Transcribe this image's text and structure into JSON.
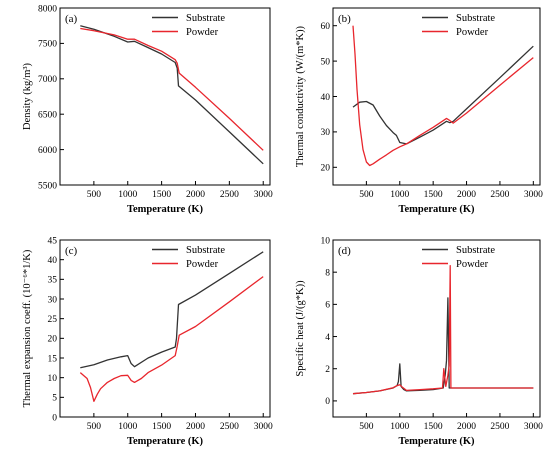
{
  "chart_data": [
    {
      "type": "line",
      "panel": "(a)",
      "xlabel": "Temperature (K)",
      "ylabel": "Density (kg/m³)",
      "xlim": [
        0,
        3100
      ],
      "ylim": [
        5500,
        8000
      ],
      "xticks": [
        "500",
        "1000",
        "1500",
        "2000",
        "2500",
        "3000"
      ],
      "yticks": [
        "5500",
        "6000",
        "6500",
        "7000",
        "7500",
        "8000"
      ],
      "legend_position": "top-right",
      "series": [
        {
          "name": "Substrate",
          "color": "#333333",
          "x": [
            300,
            500,
            800,
            1000,
            1100,
            1300,
            1500,
            1700,
            1730,
            1750,
            2000,
            2500,
            3000
          ],
          "y": [
            7750,
            7700,
            7600,
            7520,
            7530,
            7440,
            7350,
            7230,
            7150,
            6900,
            6700,
            6250,
            5800
          ]
        },
        {
          "name": "Powder",
          "color": "#e8262d",
          "x": [
            300,
            500,
            800,
            1000,
            1100,
            1300,
            1500,
            1700,
            1730,
            1760,
            2000,
            2500,
            3000
          ],
          "y": [
            7710,
            7680,
            7620,
            7560,
            7560,
            7470,
            7390,
            7270,
            7220,
            7080,
            6880,
            6440,
            5990
          ]
        }
      ]
    },
    {
      "type": "line",
      "panel": "(b)",
      "xlabel": "Temperature (K)",
      "ylabel": "Thermal conductivity (W/(m*K))",
      "xlim": [
        0,
        3100
      ],
      "ylim": [
        15,
        65
      ],
      "xticks": [
        "500",
        "1000",
        "1500",
        "2000",
        "2500",
        "3000"
      ],
      "yticks": [
        "20",
        "30",
        "40",
        "50",
        "60"
      ],
      "legend_position": "top-right",
      "series": [
        {
          "name": "Substrate",
          "color": "#333333",
          "x": [
            300,
            400,
            500,
            600,
            700,
            800,
            900,
            950,
            1000,
            1100,
            1300,
            1500,
            1700,
            1750,
            1800,
            2000,
            2500,
            3000
          ],
          "y": [
            37,
            38.4,
            38.6,
            37.6,
            34.5,
            31.8,
            29.8,
            29.0,
            27.0,
            26.6,
            28.5,
            30.5,
            33.0,
            32.6,
            33.0,
            36.5,
            45.3,
            54.2
          ]
        },
        {
          "name": "Powder",
          "color": "#e8262d",
          "x": [
            300,
            330,
            360,
            400,
            450,
            500,
            550,
            600,
            700,
            800,
            900,
            1000,
            1100,
            1300,
            1500,
            1700,
            1750,
            1800,
            2000,
            2500,
            3000
          ],
          "y": [
            60,
            52,
            42,
            32,
            25,
            21.5,
            20.5,
            21.0,
            22.3,
            23.5,
            24.8,
            25.8,
            26.6,
            29.0,
            31.3,
            33.8,
            33.2,
            32.5,
            35.3,
            43.2,
            51.0
          ]
        }
      ]
    },
    {
      "type": "line",
      "panel": "(c)",
      "xlabel": "Temperature (K)",
      "ylabel": "Thermal expansion coeff. (10⁻⁶*1/K)",
      "xlim": [
        0,
        3100
      ],
      "ylim": [
        0,
        45
      ],
      "xticks": [
        "500",
        "1000",
        "1500",
        "2000",
        "2500",
        "3000"
      ],
      "yticks": [
        "0",
        "5",
        "10",
        "15",
        "20",
        "25",
        "30",
        "35",
        "40",
        "45"
      ],
      "legend_position": "top-right",
      "series": [
        {
          "name": "Substrate",
          "color": "#333333",
          "x": [
            300,
            500,
            700,
            900,
            1000,
            1050,
            1100,
            1300,
            1500,
            1700,
            1720,
            1750,
            2000,
            2500,
            3000
          ],
          "y": [
            12.5,
            13.3,
            14.5,
            15.3,
            15.6,
            13.6,
            12.8,
            15.0,
            16.5,
            17.8,
            20.0,
            28.6,
            31.0,
            36.5,
            42.0
          ]
        },
        {
          "name": "Powder",
          "color": "#e8262d",
          "x": [
            300,
            400,
            450,
            500,
            550,
            600,
            700,
            800,
            900,
            1000,
            1050,
            1100,
            1200,
            1300,
            1500,
            1700,
            1730,
            1760,
            2000,
            2500,
            3000
          ],
          "y": [
            11.3,
            9.8,
            7.5,
            4.0,
            5.8,
            7.2,
            8.8,
            9.8,
            10.5,
            10.6,
            9.3,
            8.8,
            9.8,
            11.3,
            13.2,
            15.6,
            18.0,
            20.8,
            23.0,
            29.3,
            35.7
          ]
        }
      ]
    },
    {
      "type": "line",
      "panel": "(d)",
      "xlabel": "Temperature (K)",
      "ylabel": "Specific heat (J/(g*K))",
      "xlim": [
        0,
        3100
      ],
      "ylim": [
        -1,
        10
      ],
      "xticks": [
        "500",
        "1000",
        "1500",
        "2000",
        "2500",
        "3000"
      ],
      "yticks": [
        "0",
        "2",
        "4",
        "6",
        "8",
        "10"
      ],
      "legend_position": "top-right",
      "series": [
        {
          "name": "Substrate",
          "color": "#333333",
          "x": [
            300,
            500,
            700,
            900,
            960,
            980,
            1000,
            1020,
            1060,
            1100,
            1300,
            1500,
            1650,
            1680,
            1700,
            1720,
            1740,
            1760,
            1780,
            2000,
            2500,
            3000
          ],
          "y": [
            0.45,
            0.52,
            0.62,
            0.8,
            0.95,
            1.2,
            2.3,
            0.9,
            0.7,
            0.62,
            0.65,
            0.7,
            0.8,
            1.6,
            2.5,
            6.4,
            0.8,
            0.8,
            0.8,
            0.8,
            0.8,
            0.8
          ]
        },
        {
          "name": "Powder",
          "color": "#e8262d",
          "x": [
            300,
            500,
            700,
            900,
            960,
            1000,
            1040,
            1100,
            1300,
            1500,
            1640,
            1660,
            1690,
            1720,
            1740,
            1755,
            1765,
            1800,
            2000,
            2500,
            3000
          ],
          "y": [
            0.45,
            0.52,
            0.62,
            0.82,
            0.95,
            1.0,
            0.85,
            0.65,
            0.7,
            0.75,
            0.8,
            2.0,
            0.9,
            1.6,
            2.2,
            8.4,
            0.8,
            0.8,
            0.8,
            0.8,
            0.8
          ]
        }
      ]
    }
  ]
}
